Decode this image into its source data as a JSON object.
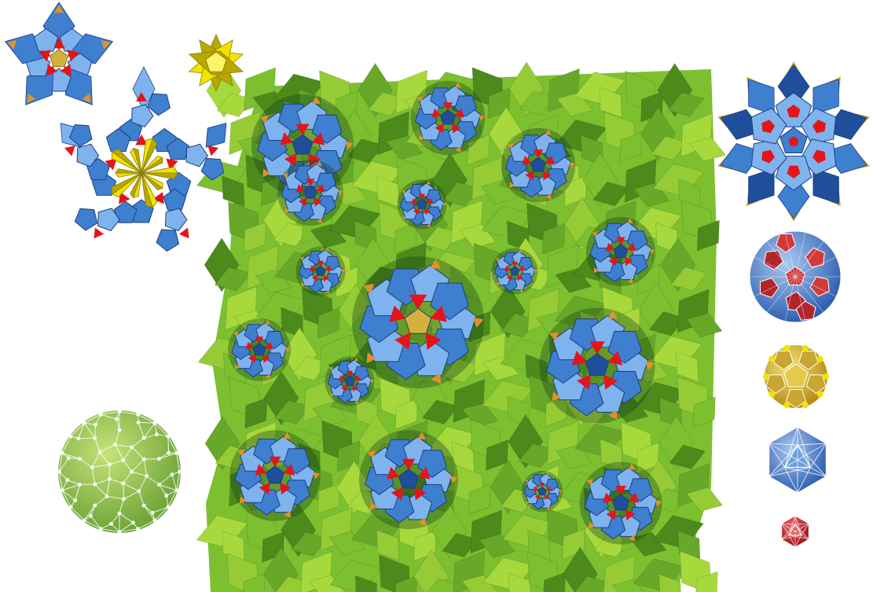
{
  "colors": {
    "background": "#ffffff",
    "green_light": "#a7d93c",
    "green_mid": "#7cc030",
    "green_dark": "#4c8a1c",
    "blue_light": "#7fb3ee",
    "blue_mid": "#3f7fd0",
    "blue_dark": "#1f4f9a",
    "red": "#e5141a",
    "red_dark": "#a80d12",
    "yellow": "#f2e200",
    "yellow_dark": "#b7a900",
    "orange": "#e0922a",
    "gold": "#d2b23a",
    "white_edge": "#ffffff"
  },
  "objects": [
    {
      "name": "star-cluster-small",
      "icon": "pentagonal-star-cluster"
    },
    {
      "name": "yellow-star-unit",
      "icon": "yellow-star-polyhedron"
    },
    {
      "name": "star-cluster-large",
      "icon": "pentagonal-star-with-yellow-core"
    },
    {
      "name": "green-quasicrystal-slab",
      "icon": "green-rhombohedra-block"
    },
    {
      "name": "blue-star-cluster-right",
      "icon": "blue-icosahedral-cluster"
    },
    {
      "name": "triacontahedron-blue-red",
      "icon": "rhombic-triacontahedron"
    },
    {
      "name": "dodecahedron-gold",
      "icon": "gold-dodecahedron"
    },
    {
      "name": "icosahedron-blue",
      "icon": "blue-icosahedron"
    },
    {
      "name": "icosahedron-red-small",
      "icon": "red-icosahedron"
    },
    {
      "name": "green-wireframe-polyhedron",
      "icon": "green-wireframe-ball"
    }
  ]
}
